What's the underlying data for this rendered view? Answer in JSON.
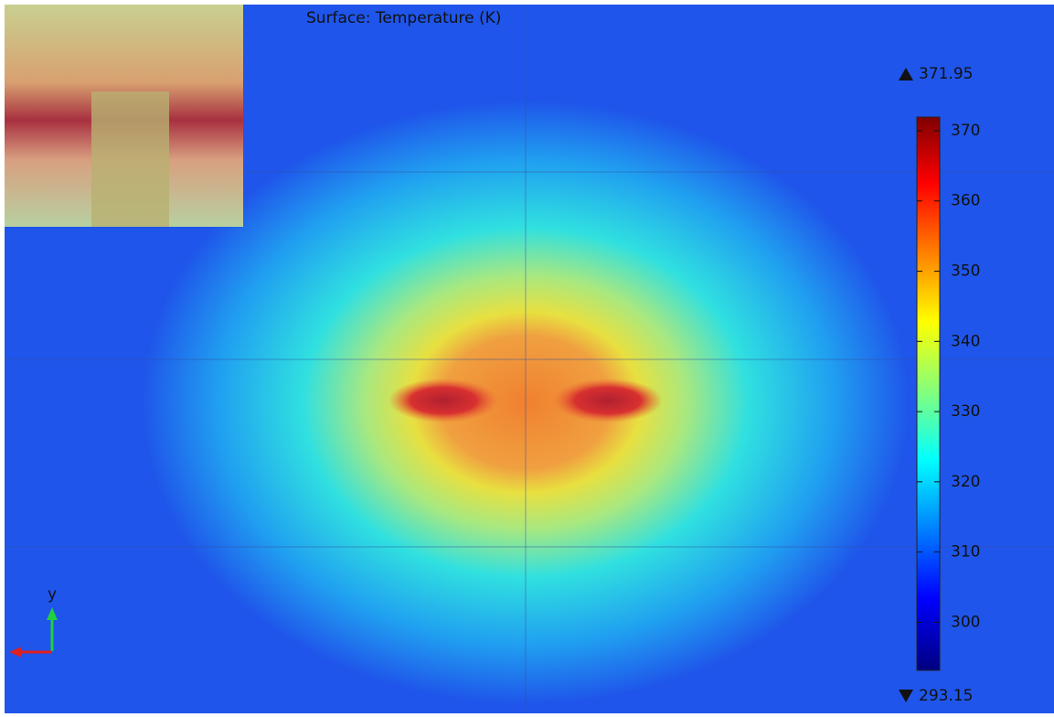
{
  "plot": {
    "title": "Surface: Temperature (K)",
    "max": 371.95,
    "min": 293.15,
    "colorbar_ticks": [
      300,
      310,
      320,
      330,
      340,
      350,
      360,
      370
    ],
    "axis_label": "y"
  }
}
